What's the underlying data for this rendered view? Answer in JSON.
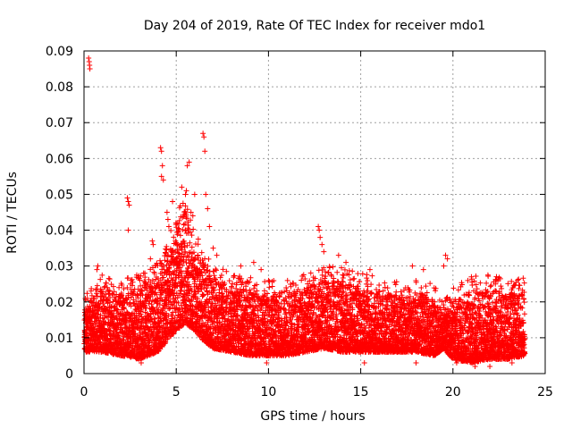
{
  "chart_data": {
    "type": "scatter",
    "title": "Day 204 of 2019, Rate Of TEC Index for receiver mdo1",
    "xlabel": "GPS time / hours",
    "ylabel": "ROTI / TECUs",
    "xlim": [
      0,
      25
    ],
    "ylim": [
      0,
      0.09
    ],
    "xticks": [
      0,
      5,
      10,
      15,
      20,
      25
    ],
    "xtick_labels": [
      "0",
      "5",
      "10",
      "15",
      "20",
      "25"
    ],
    "yticks": [
      0,
      0.01,
      0.02,
      0.03,
      0.04,
      0.05,
      0.06,
      0.07,
      0.08,
      0.09
    ],
    "ytick_labels": [
      "0",
      "0.01",
      "0.02",
      "0.03",
      "0.04",
      "0.05",
      "0.06",
      "0.07",
      "0.08",
      "0.09"
    ],
    "grid": true,
    "marker": "+",
    "color": "#ff0000",
    "band": {
      "x": [
        0,
        1,
        2,
        3,
        4,
        4.5,
        5,
        5.5,
        6,
        6.5,
        7,
        8,
        9,
        10,
        11,
        12,
        13,
        14,
        15,
        16,
        17,
        18,
        19,
        19.5,
        20,
        21,
        22,
        23,
        23.9
      ],
      "low": [
        0.006,
        0.006,
        0.005,
        0.004,
        0.006,
        0.009,
        0.012,
        0.014,
        0.012,
        0.009,
        0.007,
        0.006,
        0.005,
        0.005,
        0.005,
        0.006,
        0.007,
        0.006,
        0.006,
        0.006,
        0.006,
        0.006,
        0.005,
        0.007,
        0.004,
        0.003,
        0.004,
        0.004,
        0.005
      ],
      "high": [
        0.018,
        0.024,
        0.022,
        0.024,
        0.027,
        0.032,
        0.042,
        0.045,
        0.036,
        0.03,
        0.027,
        0.024,
        0.023,
        0.022,
        0.022,
        0.024,
        0.026,
        0.026,
        0.024,
        0.023,
        0.022,
        0.022,
        0.021,
        0.016,
        0.02,
        0.023,
        0.024,
        0.022,
        0.023
      ]
    },
    "outliers": [
      [
        0.25,
        0.088
      ],
      [
        0.28,
        0.087
      ],
      [
        0.3,
        0.086
      ],
      [
        0.32,
        0.085
      ],
      [
        0.7,
        0.029
      ],
      [
        0.75,
        0.03
      ],
      [
        1.1,
        0.024
      ],
      [
        2.35,
        0.049
      ],
      [
        2.4,
        0.048
      ],
      [
        2.45,
        0.047
      ],
      [
        2.4,
        0.04
      ],
      [
        3.3,
        0.028
      ],
      [
        3.6,
        0.032
      ],
      [
        3.7,
        0.037
      ],
      [
        3.75,
        0.036
      ],
      [
        4.15,
        0.063
      ],
      [
        4.2,
        0.062
      ],
      [
        4.25,
        0.058
      ],
      [
        4.2,
        0.055
      ],
      [
        4.3,
        0.054
      ],
      [
        4.5,
        0.045
      ],
      [
        4.55,
        0.043
      ],
      [
        4.6,
        0.041
      ],
      [
        4.8,
        0.048
      ],
      [
        5.3,
        0.052
      ],
      [
        5.6,
        0.058
      ],
      [
        5.7,
        0.059
      ],
      [
        5.55,
        0.051
      ],
      [
        5.5,
        0.05
      ],
      [
        5.8,
        0.045
      ],
      [
        5.9,
        0.044
      ],
      [
        6.0,
        0.05
      ],
      [
        6.45,
        0.067
      ],
      [
        6.5,
        0.066
      ],
      [
        6.55,
        0.062
      ],
      [
        6.6,
        0.05
      ],
      [
        6.7,
        0.046
      ],
      [
        6.8,
        0.041
      ],
      [
        7.0,
        0.035
      ],
      [
        7.2,
        0.033
      ],
      [
        8.5,
        0.03
      ],
      [
        9.2,
        0.031
      ],
      [
        9.6,
        0.029
      ],
      [
        12.7,
        0.041
      ],
      [
        12.75,
        0.04
      ],
      [
        12.8,
        0.038
      ],
      [
        12.9,
        0.036
      ],
      [
        13.0,
        0.034
      ],
      [
        13.8,
        0.033
      ],
      [
        14.2,
        0.031
      ],
      [
        15.5,
        0.029
      ],
      [
        17.8,
        0.03
      ],
      [
        18.4,
        0.029
      ],
      [
        19.6,
        0.033
      ],
      [
        19.7,
        0.032
      ],
      [
        19.5,
        0.03
      ],
      [
        21.0,
        0.027
      ],
      [
        22.3,
        0.025
      ],
      [
        20.2,
        0.003
      ],
      [
        21.2,
        0.002
      ],
      [
        22.0,
        0.002
      ],
      [
        23.2,
        0.003
      ],
      [
        3.1,
        0.003
      ],
      [
        9.9,
        0.003
      ],
      [
        15.2,
        0.003
      ],
      [
        18.0,
        0.003
      ]
    ]
  }
}
